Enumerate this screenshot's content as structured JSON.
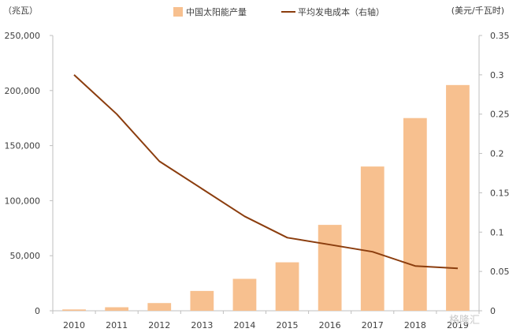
{
  "chart_data": {
    "type": "bar",
    "categories": [
      "2010",
      "2011",
      "2012",
      "2013",
      "2014",
      "2015",
      "2016",
      "2017",
      "2018",
      "2019"
    ],
    "series": [
      {
        "name": "中国太阳能产量",
        "type": "bar",
        "axis": "left",
        "values": [
          1200,
          3200,
          7000,
          18000,
          29000,
          44000,
          78000,
          131000,
          175000,
          205000
        ],
        "color": "#F7C08F"
      },
      {
        "name": "平均发电成本（右轴）",
        "type": "line",
        "axis": "right",
        "values": [
          0.3,
          0.25,
          0.19,
          0.155,
          0.12,
          0.093,
          0.084,
          0.075,
          0.057,
          0.054
        ],
        "color": "#8B3D0E"
      }
    ],
    "left_axis": {
      "unit_label": "（兆瓦）",
      "ylim": [
        0,
        250000
      ],
      "ticks": [
        "0",
        "50,000",
        "100,000",
        "150,000",
        "200,000",
        "250,000"
      ]
    },
    "right_axis": {
      "unit_label": "(美元/千瓦时)",
      "ylim": [
        0,
        0.35
      ],
      "ticks": [
        "0",
        "0.05",
        "0.1",
        "0.15",
        "0.2",
        "0.25",
        "0.3",
        "0.35"
      ]
    },
    "grid": false,
    "legend": "top-center"
  },
  "watermark": "格隆汇"
}
